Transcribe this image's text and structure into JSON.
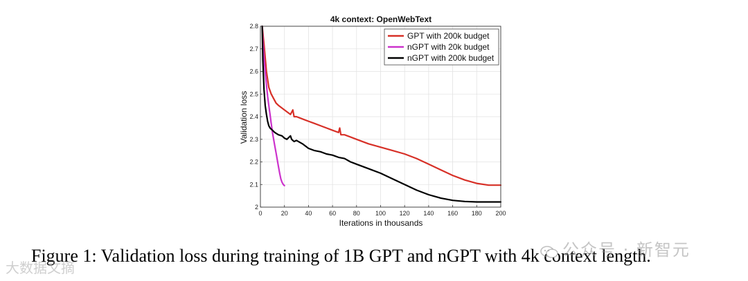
{
  "chart_data": {
    "type": "line",
    "title": "4k context: OpenWebText",
    "xlabel": "Iterations in thousands",
    "ylabel": "Validation loss",
    "xlim": [
      0,
      200
    ],
    "ylim": [
      2,
      2.8
    ],
    "xticks": [
      0,
      20,
      40,
      60,
      80,
      100,
      120,
      140,
      160,
      180,
      200
    ],
    "yticks": [
      2,
      2.1,
      2.2,
      2.3,
      2.4,
      2.5,
      2.6,
      2.7,
      2.8
    ],
    "grid": true,
    "legend_position": "top-right",
    "series": [
      {
        "name": "GPT with 200k budget",
        "color": "#d73027",
        "x": [
          1.5,
          3,
          5,
          7,
          9,
          11,
          13,
          15,
          20,
          25,
          27,
          28,
          30,
          35,
          40,
          45,
          50,
          55,
          60,
          65,
          66,
          67,
          70,
          80,
          90,
          100,
          110,
          120,
          130,
          140,
          150,
          160,
          170,
          180,
          190,
          200
        ],
        "y": [
          2.8,
          2.72,
          2.6,
          2.53,
          2.5,
          2.48,
          2.46,
          2.45,
          2.43,
          2.41,
          2.43,
          2.4,
          2.4,
          2.39,
          2.38,
          2.37,
          2.36,
          2.35,
          2.34,
          2.33,
          2.35,
          2.32,
          2.32,
          2.3,
          2.28,
          2.265,
          2.25,
          2.235,
          2.215,
          2.19,
          2.165,
          2.14,
          2.12,
          2.105,
          2.097,
          2.097
        ]
      },
      {
        "name": "nGPT with 20k budget",
        "color": "#cc33cc",
        "x": [
          1.5,
          2,
          3,
          4,
          5,
          6,
          7,
          8,
          9,
          10,
          11,
          12,
          13,
          14,
          15,
          16,
          17,
          18,
          19,
          20
        ],
        "y": [
          2.8,
          2.74,
          2.66,
          2.6,
          2.54,
          2.49,
          2.45,
          2.41,
          2.37,
          2.33,
          2.3,
          2.27,
          2.24,
          2.21,
          2.18,
          2.15,
          2.125,
          2.11,
          2.1,
          2.095
        ]
      },
      {
        "name": "nGPT with 200k budget",
        "color": "#000000",
        "x": [
          1.5,
          2,
          3,
          4,
          5,
          6,
          7,
          8,
          10,
          12,
          15,
          18,
          20,
          22,
          24,
          25,
          26,
          28,
          30,
          35,
          40,
          45,
          50,
          55,
          60,
          65,
          70,
          75,
          80,
          90,
          100,
          110,
          120,
          130,
          140,
          150,
          160,
          170,
          180,
          190,
          200
        ],
        "y": [
          2.8,
          2.65,
          2.52,
          2.45,
          2.41,
          2.38,
          2.36,
          2.35,
          2.34,
          2.33,
          2.32,
          2.315,
          2.305,
          2.3,
          2.31,
          2.315,
          2.3,
          2.29,
          2.295,
          2.28,
          2.26,
          2.25,
          2.245,
          2.235,
          2.23,
          2.22,
          2.215,
          2.2,
          2.19,
          2.17,
          2.15,
          2.125,
          2.1,
          2.075,
          2.055,
          2.04,
          2.03,
          2.025,
          2.023,
          2.023,
          2.023
        ]
      }
    ]
  },
  "caption": "Figure 1: Validation loss during training of 1B GPT and nGPT with 4k context length.",
  "watermarks": {
    "right": "公众号 · 新智元",
    "left": "大数据文摘"
  }
}
